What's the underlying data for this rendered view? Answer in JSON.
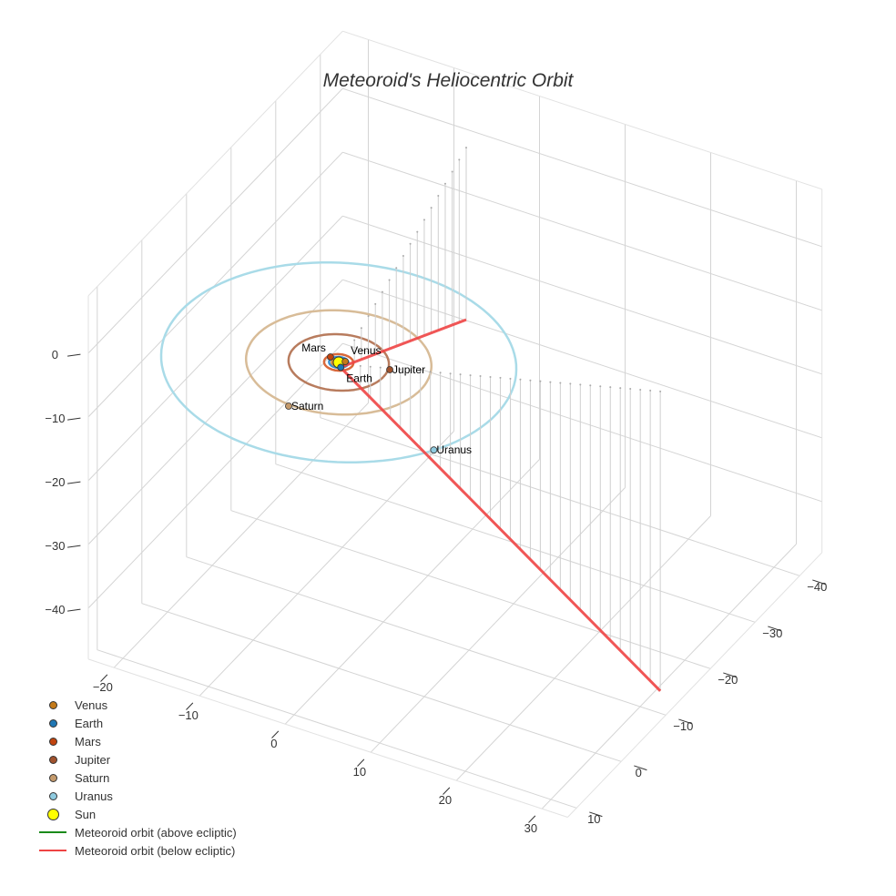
{
  "chart_data": {
    "type": "scatter3d",
    "title": "Meteoroid's Heliocentric Orbit",
    "axes": {
      "x": {
        "ticks": [
          -20,
          -10,
          0,
          10,
          20,
          30
        ],
        "tick_labels": [
          "−20",
          "−10",
          "0",
          "10",
          "20",
          "30"
        ],
        "range": [
          -23,
          33
        ]
      },
      "y": {
        "ticks": [
          -40,
          -30,
          -20,
          -10,
          0,
          10
        ],
        "tick_labels": [
          "−40",
          "−30",
          "−20",
          "−10",
          "0",
          "10"
        ],
        "range": [
          -45,
          12
        ]
      },
      "z": {
        "ticks": [
          -40,
          -30,
          -20,
          -10,
          0
        ],
        "tick_labels": [
          "−40",
          "−30",
          "−20",
          "−10",
          "0"
        ],
        "range": [
          -48,
          9
        ]
      }
    },
    "grid": true,
    "sun": {
      "name": "Sun",
      "x": 0,
      "y": 0,
      "z": 0,
      "color": "#ffff00"
    },
    "planets": [
      {
        "name": "Venus",
        "x": 0.5,
        "y": -0.5,
        "z": 0,
        "orbit_radius": 0.72,
        "color": "#c47a1a",
        "orbit_color": "#d08a3a"
      },
      {
        "name": "Earth",
        "x": 0.6,
        "y": 0.7,
        "z": 0,
        "orbit_radius": 1.0,
        "color": "#1f77b4",
        "orbit_color": "#3a8fd0"
      },
      {
        "name": "Mars",
        "x": -1.2,
        "y": -0.45,
        "z": 0,
        "orbit_radius": 1.52,
        "color": "#c1440e",
        "orbit_color": "#d9683a"
      },
      {
        "name": "Jupiter",
        "x": 5.15,
        "y": -1.56,
        "z": 0,
        "orbit_radius": 5.2,
        "color": "#a0522d",
        "orbit_color": "#b87c5e"
      },
      {
        "name": "Saturn",
        "x": -0.72,
        "y": 9.85,
        "z": 0,
        "orbit_radius": 9.6,
        "color": "#c49a6c",
        "orbit_color": "#d8bc98"
      },
      {
        "name": "Uranus",
        "x": 15.9,
        "y": 9.2,
        "z": 0,
        "orbit_radius": 18.4,
        "color": "#8fcbe0",
        "orbit_color": "#a9dbe8"
      }
    ],
    "meteoroid": {
      "above_label": "Meteoroid orbit (above ecliptic)",
      "below_label": "Meteoroid orbit (below ecliptic)",
      "above_color": "#1a8a1a",
      "below_color": "#ee4444",
      "segments": [
        {
          "start": [
            0.3,
            0.2,
            -0.5
          ],
          "end": [
            -7,
            -42,
            -27
          ],
          "samples": 18
        },
        {
          "start": [
            0.3,
            0.2,
            -0.5
          ],
          "end": [
            31,
            -12.6,
            -47
          ],
          "samples": 32
        }
      ]
    },
    "legend": {
      "placement": "bottom-left",
      "items": [
        {
          "label": "Venus",
          "kind": "dot",
          "color": "#c47a1a"
        },
        {
          "label": "Earth",
          "kind": "dot",
          "color": "#1f77b4"
        },
        {
          "label": "Mars",
          "kind": "dot",
          "color": "#c1440e"
        },
        {
          "label": "Jupiter",
          "kind": "dot",
          "color": "#a0522d"
        },
        {
          "label": "Saturn",
          "kind": "dot",
          "color": "#c49a6c"
        },
        {
          "label": "Uranus",
          "kind": "dot",
          "color": "#8fcbe0"
        },
        {
          "label": "Sun",
          "kind": "bigdot",
          "color": "#ffff00"
        },
        {
          "label": "Meteoroid orbit (above ecliptic)",
          "kind": "line",
          "color": "#1a8a1a"
        },
        {
          "label": "Meteoroid orbit (below ecliptic)",
          "kind": "line",
          "color": "#ee4444"
        }
      ]
    }
  }
}
